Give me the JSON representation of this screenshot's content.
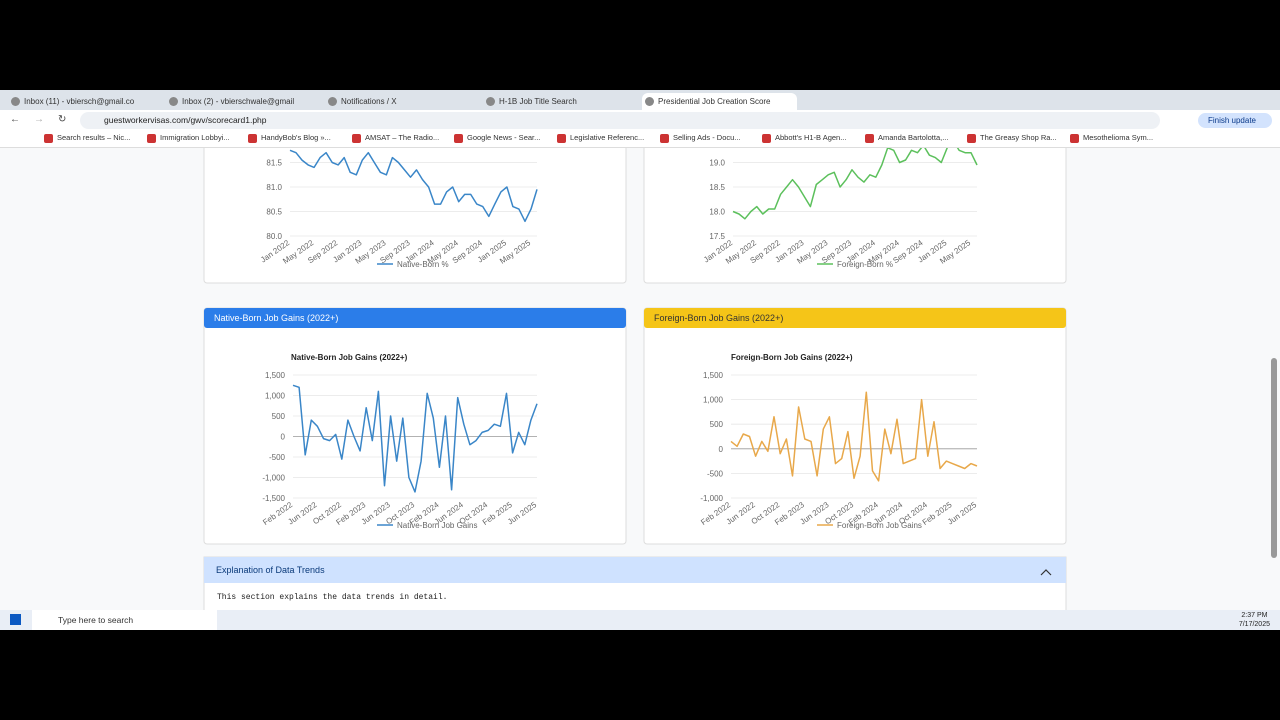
{
  "browser": {
    "tabs": [
      "Inbox (11) - vbiersch@gmail.co",
      "Inbox (2) - vbierschwale@gmail",
      "Notifications / X",
      "H-1B Job Title Search",
      "Presidential Job Creation Score"
    ],
    "url": "guestworkervisas.com/gwv/scorecard1.php",
    "update_button": "Finish update",
    "bookmarks": [
      "Search results – Nic...",
      "Immigration Lobbyi...",
      "HandyBob's Blog »...",
      "AMSAT – The Radio...",
      "Google News - Sear...",
      "Legislative Referenc...",
      "Selling Ads - Docu...",
      "Abbott's H1-B Agen...",
      "Amanda Bartolotta,...",
      "The Greasy Shop Ra...",
      "Mesothelioma Sym..."
    ]
  },
  "page": {
    "cards": [
      "Native-Born Job Gains (2022+)",
      "Foreign-Born Job Gains (2022+)"
    ],
    "explanation": {
      "title": "Explanation of Data Trends",
      "text": "This section explains the data trends in detail."
    }
  },
  "chart_data": [
    {
      "type": "line",
      "categories": [
        "Jan 2022",
        null,
        null,
        null,
        "May 2022",
        null,
        null,
        null,
        "Sep 2022",
        null,
        null,
        null,
        "Jan 2023",
        null,
        null,
        null,
        "May 2023",
        null,
        null,
        null,
        "Sep 2023",
        null,
        null,
        null,
        "Jan 2024",
        null,
        null,
        null,
        "May 2024",
        null,
        null,
        null,
        "Sep 2024",
        null,
        null,
        null,
        "Jan 2025",
        null,
        null,
        null,
        "May 2025",
        null
      ],
      "series": [
        {
          "name": "Native-Born %",
          "color": "#3a86c8",
          "values": [
            81.75,
            81.7,
            81.55,
            81.45,
            81.4,
            81.6,
            81.7,
            81.5,
            81.45,
            81.6,
            81.3,
            81.25,
            81.55,
            81.7,
            81.5,
            81.3,
            81.25,
            81.6,
            81.5,
            81.35,
            81.2,
            81.35,
            81.15,
            81.0,
            80.65,
            80.65,
            80.9,
            81.0,
            80.7,
            80.85,
            80.85,
            80.65,
            80.6,
            80.4,
            80.65,
            80.9,
            81.0,
            80.6,
            80.55,
            80.3,
            80.55,
            80.95
          ]
        }
      ],
      "ylim": [
        80,
        82
      ],
      "yticks": [
        {
          "value": 80,
          "label": "80.0"
        },
        80.5,
        {
          "value": 81,
          "label": "81.0"
        },
        81.5
      ],
      "grid": true
    },
    {
      "type": "line",
      "categories": [
        "Jan 2022",
        null,
        null,
        null,
        "May 2022",
        null,
        null,
        null,
        "Sep 2022",
        null,
        null,
        null,
        "Jan 2023",
        null,
        null,
        null,
        "May 2023",
        null,
        null,
        null,
        "Sep 2023",
        null,
        null,
        null,
        "Jan 2024",
        null,
        null,
        null,
        "May 2024",
        null,
        null,
        null,
        "Sep 2024",
        null,
        null,
        null,
        "Jan 2025",
        null,
        null,
        null,
        "May 2025",
        null
      ],
      "series": [
        {
          "name": "Foreign-Born %",
          "color": "#5cc05c",
          "values": [
            18.0,
            17.95,
            17.85,
            18.0,
            18.1,
            17.95,
            18.05,
            18.05,
            18.35,
            18.5,
            18.65,
            18.5,
            18.3,
            18.1,
            18.55,
            18.65,
            18.75,
            18.8,
            18.5,
            18.65,
            18.85,
            18.7,
            18.6,
            18.75,
            18.7,
            18.95,
            19.3,
            19.25,
            19.0,
            19.05,
            19.25,
            19.2,
            19.35,
            19.15,
            19.1,
            19.0,
            19.3,
            19.45,
            19.25,
            19.2,
            19.2,
            18.95
          ]
        }
      ],
      "ylim": [
        17.5,
        19.5
      ],
      "yticks": [
        17.5,
        {
          "value": 18,
          "label": "18.0"
        },
        18.5,
        {
          "value": 19,
          "label": "19.0"
        }
      ],
      "grid": true
    },
    {
      "type": "line",
      "title": "Native-Born Job Gains (2022+)",
      "categories": [
        "Feb 2022",
        null,
        null,
        null,
        "Jun 2022",
        null,
        null,
        null,
        "Oct 2022",
        null,
        null,
        null,
        "Feb 2023",
        null,
        null,
        null,
        "Jun 2023",
        null,
        null,
        null,
        "Oct 2023",
        null,
        null,
        null,
        "Feb 2024",
        null,
        null,
        null,
        "Jun 2024",
        null,
        null,
        null,
        "Oct 2024",
        null,
        null,
        null,
        "Feb 2025",
        null,
        null,
        null,
        "Jun 2025"
      ],
      "series": [
        {
          "name": "Native-Born Job Gains",
          "color": "#3a86c8",
          "values": [
            1250,
            1200,
            -450,
            400,
            250,
            -50,
            -100,
            50,
            -550,
            400,
            0,
            -350,
            700,
            -100,
            1100,
            -1200,
            500,
            -600,
            450,
            -1000,
            -1350,
            -600,
            1050,
            450,
            -750,
            500,
            -1300,
            950,
            300,
            -200,
            -100,
            100,
            150,
            300,
            250,
            1050,
            -400,
            100,
            -200,
            400,
            800
          ]
        }
      ],
      "ylim": [
        -1500,
        1500
      ],
      "yticks": [
        {
          "value": -1500,
          "label": "-1,500"
        },
        {
          "value": -1000,
          "label": "-1,000"
        },
        -500,
        0,
        500,
        {
          "value": 1000,
          "label": "1,000"
        },
        {
          "value": 1500,
          "label": "1,500"
        }
      ],
      "grid": true
    },
    {
      "type": "line",
      "title": "Foreign-Born Job Gains (2022+)",
      "categories": [
        "Feb 2022",
        null,
        null,
        null,
        "Jun 2022",
        null,
        null,
        null,
        "Oct 2022",
        null,
        null,
        null,
        "Feb 2023",
        null,
        null,
        null,
        "Jun 2023",
        null,
        null,
        null,
        "Oct 2023",
        null,
        null,
        null,
        "Feb 2024",
        null,
        null,
        null,
        "Jun 2024",
        null,
        null,
        null,
        "Oct 2024",
        null,
        null,
        null,
        "Feb 2025",
        null,
        null,
        null,
        "Jun 2025"
      ],
      "series": [
        {
          "name": "Foreign-Born Job Gains",
          "color": "#e8a84a",
          "values": [
            150,
            50,
            300,
            250,
            -150,
            150,
            -50,
            650,
            -100,
            200,
            -550,
            850,
            200,
            150,
            -550,
            400,
            650,
            -300,
            -200,
            350,
            -600,
            -150,
            1150,
            -450,
            -650,
            400,
            -100,
            600,
            -300,
            -250,
            -200,
            1000,
            -150,
            550,
            -400,
            -250,
            -300,
            -350,
            -400,
            -300,
            -350
          ]
        }
      ],
      "ylim": [
        -1000,
        1500
      ],
      "yticks": [
        {
          "value": -1000,
          "label": "-1,000"
        },
        -500,
        0,
        500,
        {
          "value": 1000,
          "label": "1,000"
        },
        {
          "value": 1500,
          "label": "1,500"
        }
      ],
      "grid": true
    }
  ],
  "taskbar": {
    "search": "Type here to search",
    "time": "2:37 PM",
    "date": "7/17/2025"
  }
}
